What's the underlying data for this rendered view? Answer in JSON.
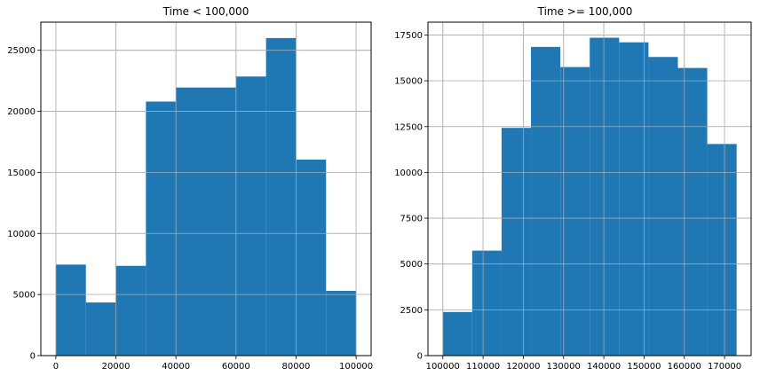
{
  "chart_data": [
    {
      "type": "bar",
      "title": "Time < 100,000",
      "xlabel": "",
      "ylabel": "",
      "grid": true,
      "color": "#1f77b4",
      "xlim": [
        -5000,
        105000
      ],
      "ylim": [
        0,
        27300
      ],
      "xticks": [
        0,
        20000,
        40000,
        60000,
        80000,
        100000
      ],
      "yticks": [
        0,
        5000,
        10000,
        15000,
        20000,
        25000
      ],
      "bin_edges": [
        0,
        10000,
        20000,
        30000,
        40000,
        50000,
        60000,
        70000,
        80000,
        90000,
        100000
      ],
      "values": [
        7450,
        4350,
        7350,
        20800,
        21950,
        21950,
        22850,
        26000,
        16050,
        5300
      ]
    },
    {
      "type": "bar",
      "title": "Time >= 100,000",
      "xlabel": "",
      "ylabel": "",
      "grid": true,
      "color": "#1f77b4",
      "xlim": [
        96300,
        176600
      ],
      "ylim": [
        0,
        18200
      ],
      "xticks": [
        100000,
        110000,
        120000,
        130000,
        140000,
        150000,
        160000,
        170000
      ],
      "yticks": [
        0,
        2500,
        5000,
        7500,
        10000,
        12500,
        15000,
        17500
      ],
      "bin_edges": [
        100000,
        107300,
        114600,
        121900,
        129200,
        136500,
        143800,
        151100,
        158400,
        165700,
        173000
      ],
      "values": [
        2380,
        5730,
        12430,
        16850,
        15750,
        17350,
        17100,
        16300,
        15700,
        11550
      ]
    }
  ]
}
